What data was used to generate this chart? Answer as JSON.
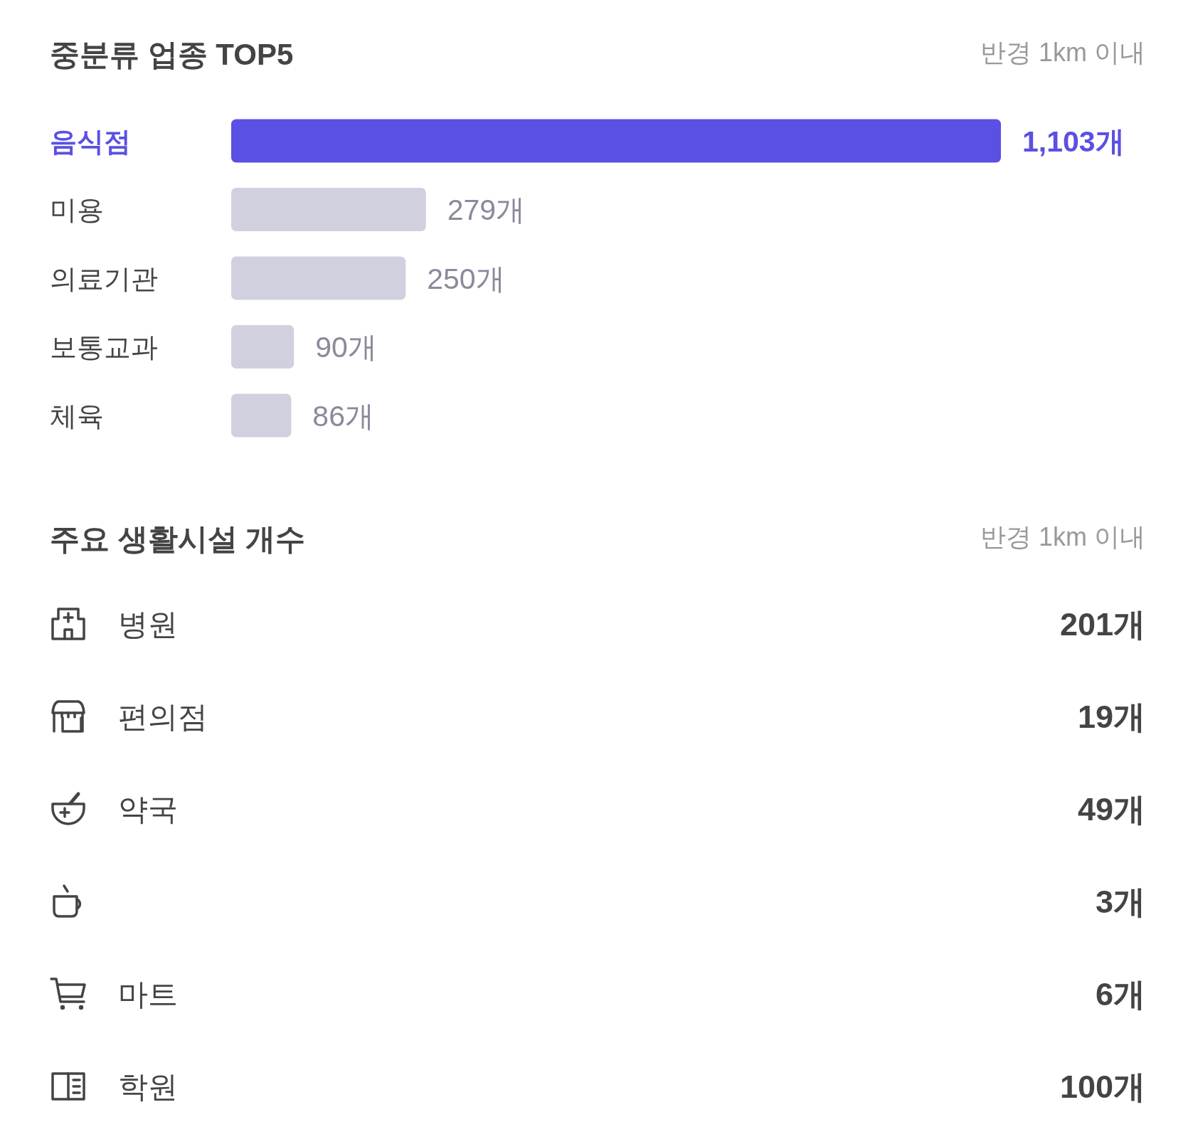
{
  "chart_data": [
    {
      "type": "bar",
      "orientation": "horizontal",
      "title": "중분류 업종 TOP5",
      "subtitle": "반경 1km 이내",
      "categories": [
        "음식점",
        "미용",
        "의료기관",
        "보통교과",
        "체육"
      ],
      "values": [
        1103,
        279,
        250,
        90,
        86
      ],
      "colors": [
        "#5a50e3",
        "#d1d0de",
        "#d1d0de",
        "#d1d0de",
        "#d1d0de"
      ],
      "value_labels": [
        "1,103개",
        "279개",
        "250개",
        "90개",
        "86개"
      ]
    },
    {
      "type": "other",
      "title": "주요 생활시설 개수",
      "subtitle": "반경 1km 이내",
      "categories": [
        "병원",
        "편의점",
        "약국",
        null,
        "마트",
        "학원"
      ],
      "value_labels": [
        "201개",
        "19개",
        "49개",
        "3개",
        "6개",
        "100개"
      ]
    }
  ]
}
